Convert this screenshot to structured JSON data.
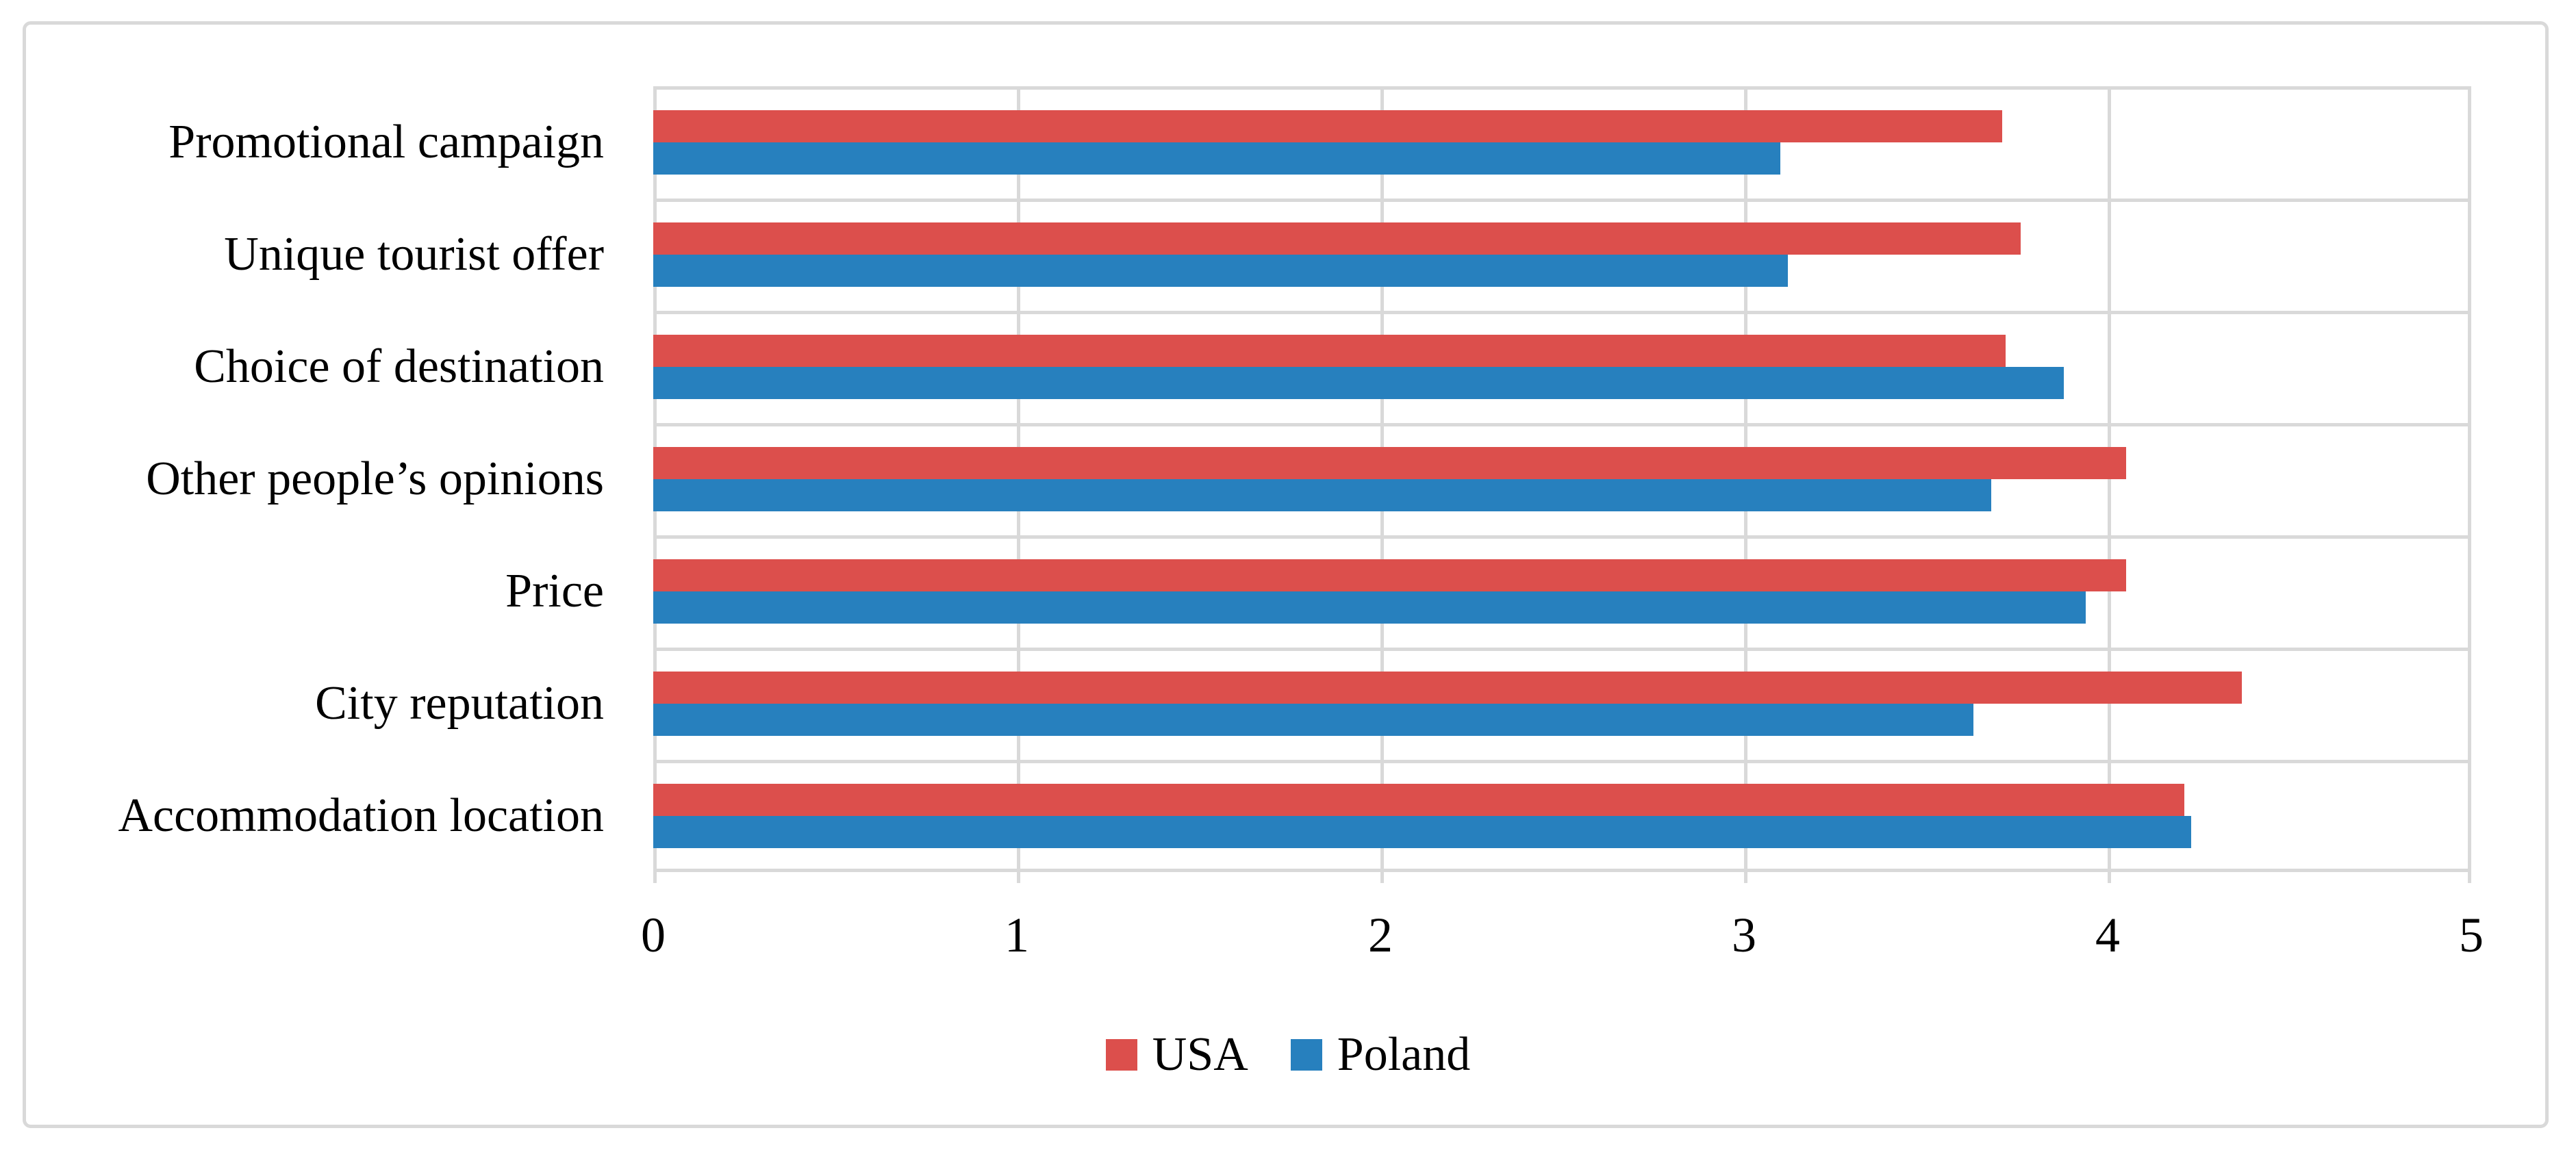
{
  "figure": {
    "background": "#FFFFFF",
    "border_color": "#D9D9D9",
    "text_color": "#000000"
  },
  "chart_data": {
    "type": "bar",
    "orientation": "horizontal",
    "title": "",
    "xlabel": "",
    "ylabel": "",
    "categories": [
      "Promotional campaign",
      "Unique tourist offer",
      "Choice of destination",
      "Other people’s opinions",
      "Price",
      "City reputation",
      "Accommodation location"
    ],
    "series": [
      {
        "name": "USA",
        "color": "#DC4F4C",
        "values": [
          3.71,
          3.76,
          3.72,
          4.05,
          4.05,
          4.37,
          4.21
        ]
      },
      {
        "name": "Poland",
        "color": "#2780BE",
        "values": [
          3.1,
          3.12,
          3.88,
          3.68,
          3.94,
          3.63,
          4.23
        ]
      }
    ],
    "x_axis": {
      "min": 0,
      "max": 5,
      "tick_labels": [
        "0",
        "1",
        "2",
        "3",
        "4",
        "5"
      ]
    },
    "grid": true,
    "gridline_color": "#D9D9D9",
    "legend": {
      "position": "bottom",
      "entries": [
        "USA",
        "Poland"
      ]
    }
  }
}
